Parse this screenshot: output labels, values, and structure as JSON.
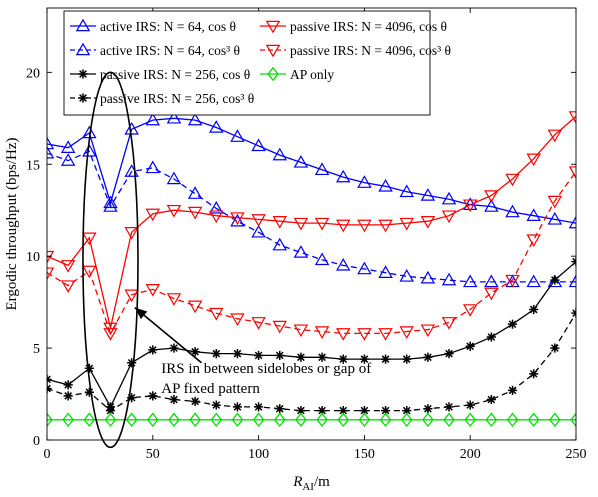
{
  "chart_data": {
    "type": "line",
    "xlabel": "R_AI/m",
    "ylabel": "Ergodic throughput (bps/Hz)",
    "xlim": [
      0,
      250
    ],
    "ylim": [
      0,
      23.5
    ],
    "x_ticks": [
      0,
      50,
      100,
      150,
      200,
      250
    ],
    "y_ticks": [
      0,
      5,
      10,
      15,
      20
    ],
    "x_tick_labels": [
      "0",
      "50",
      "100",
      "150",
      "200",
      "250"
    ],
    "y_tick_labels": [
      "0",
      "5",
      "10",
      "15",
      "20"
    ],
    "grid": false,
    "legend_position": "top",
    "x": [
      0,
      10,
      20,
      30,
      40,
      50,
      60,
      70,
      80,
      90,
      100,
      110,
      120,
      130,
      140,
      150,
      160,
      170,
      180,
      190,
      200,
      210,
      220,
      230,
      240,
      250
    ],
    "series": [
      {
        "name": "active IRS: N = 64, cosθ",
        "color": "#0000ff",
        "dash": "solid",
        "marker": "triangle-up",
        "values": [
          16.1,
          15.9,
          16.7,
          12.9,
          16.9,
          17.4,
          17.5,
          17.4,
          17.0,
          16.5,
          16.0,
          15.5,
          15.1,
          14.7,
          14.3,
          14.0,
          13.8,
          13.5,
          13.3,
          13.1,
          12.8,
          12.7,
          12.4,
          12.2,
          12.0,
          11.8
        ]
      },
      {
        "name": "active IRS: N = 64, cos³θ",
        "color": "#0000ff",
        "dash": "dashed",
        "marker": "triangle-up",
        "values": [
          15.6,
          15.2,
          15.7,
          12.7,
          14.6,
          14.8,
          14.2,
          13.4,
          12.6,
          11.9,
          11.3,
          10.6,
          10.2,
          9.8,
          9.5,
          9.3,
          9.1,
          8.9,
          8.8,
          8.7,
          8.6,
          8.6,
          8.6,
          8.6,
          8.6,
          8.6
        ]
      },
      {
        "name": "passive IRS: N = 256, cosθ",
        "color": "#000000",
        "dash": "solid",
        "marker": "asterisk",
        "values": [
          3.3,
          3.0,
          3.9,
          1.8,
          4.2,
          4.9,
          5.0,
          4.8,
          4.7,
          4.7,
          4.6,
          4.6,
          4.5,
          4.5,
          4.4,
          4.4,
          4.4,
          4.4,
          4.5,
          4.7,
          5.1,
          5.6,
          6.3,
          7.1,
          8.7,
          9.7
        ]
      },
      {
        "name": "passive IRS: N = 256, cos³θ",
        "color": "#000000",
        "dash": "dashed",
        "marker": "asterisk",
        "values": [
          2.8,
          2.4,
          2.6,
          1.6,
          2.3,
          2.4,
          2.2,
          2.1,
          1.9,
          1.8,
          1.8,
          1.7,
          1.6,
          1.6,
          1.6,
          1.6,
          1.6,
          1.6,
          1.7,
          1.8,
          1.9,
          2.2,
          2.7,
          3.6,
          5.0,
          6.9
        ]
      },
      {
        "name": "passive IRS: N = 4096, cosθ",
        "color": "#ff0000",
        "dash": "solid",
        "marker": "triangle-down",
        "values": [
          10.0,
          9.5,
          11.0,
          6.1,
          11.3,
          12.3,
          12.5,
          12.4,
          12.2,
          12.1,
          12.0,
          11.9,
          11.8,
          11.8,
          11.7,
          11.7,
          11.7,
          11.8,
          11.9,
          12.2,
          12.8,
          13.3,
          14.2,
          15.3,
          16.6,
          17.6
        ]
      },
      {
        "name": "passive IRS: N = 4096, cos³θ",
        "color": "#ff0000",
        "dash": "dashed",
        "marker": "triangle-down",
        "values": [
          9.1,
          8.4,
          9.2,
          5.8,
          7.9,
          8.2,
          7.7,
          7.3,
          6.9,
          6.6,
          6.4,
          6.2,
          6.0,
          5.9,
          5.8,
          5.8,
          5.8,
          5.9,
          6.0,
          6.4,
          7.1,
          8.0,
          8.7,
          10.9,
          13.0,
          14.6
        ]
      },
      {
        "name": "AP only",
        "color": "#00e000",
        "dash": "solid",
        "marker": "diamond",
        "values": [
          1.1,
          1.1,
          1.1,
          1.1,
          1.1,
          1.1,
          1.1,
          1.1,
          1.1,
          1.1,
          1.1,
          1.1,
          1.1,
          1.1,
          1.1,
          1.1,
          1.1,
          1.1,
          1.1,
          1.1,
          1.1,
          1.1,
          1.1,
          1.1,
          1.1,
          1.1
        ]
      }
    ],
    "legend": [
      {
        "series": 0,
        "label": "active IRS: N = 64, cos θ"
      },
      {
        "series": 4,
        "label": "passive IRS: N = 4096, cos θ"
      },
      {
        "series": 1,
        "label": "active IRS: N = 64, cos³ θ"
      },
      {
        "series": 5,
        "label": "passive IRS: N = 4096, cos³ θ"
      },
      {
        "series": 2,
        "label": "passive IRS: N = 256, cos θ"
      },
      {
        "series": 6,
        "label": "AP only"
      },
      {
        "series": 3,
        "label": "passive IRS: N = 256, cos³ θ"
      }
    ],
    "annotation": {
      "lines": [
        "IRS in between sidelobes or gap of",
        "AP fixed pattern"
      ],
      "ellipse_center": [
        30,
        9.8
      ],
      "ellipse_radius_x": 13,
      "ellipse_radius_y": 10.2,
      "arrow_tip": [
        41.5,
        7.2
      ],
      "arrow_tail": [
        73,
        4.2
      ]
    }
  }
}
